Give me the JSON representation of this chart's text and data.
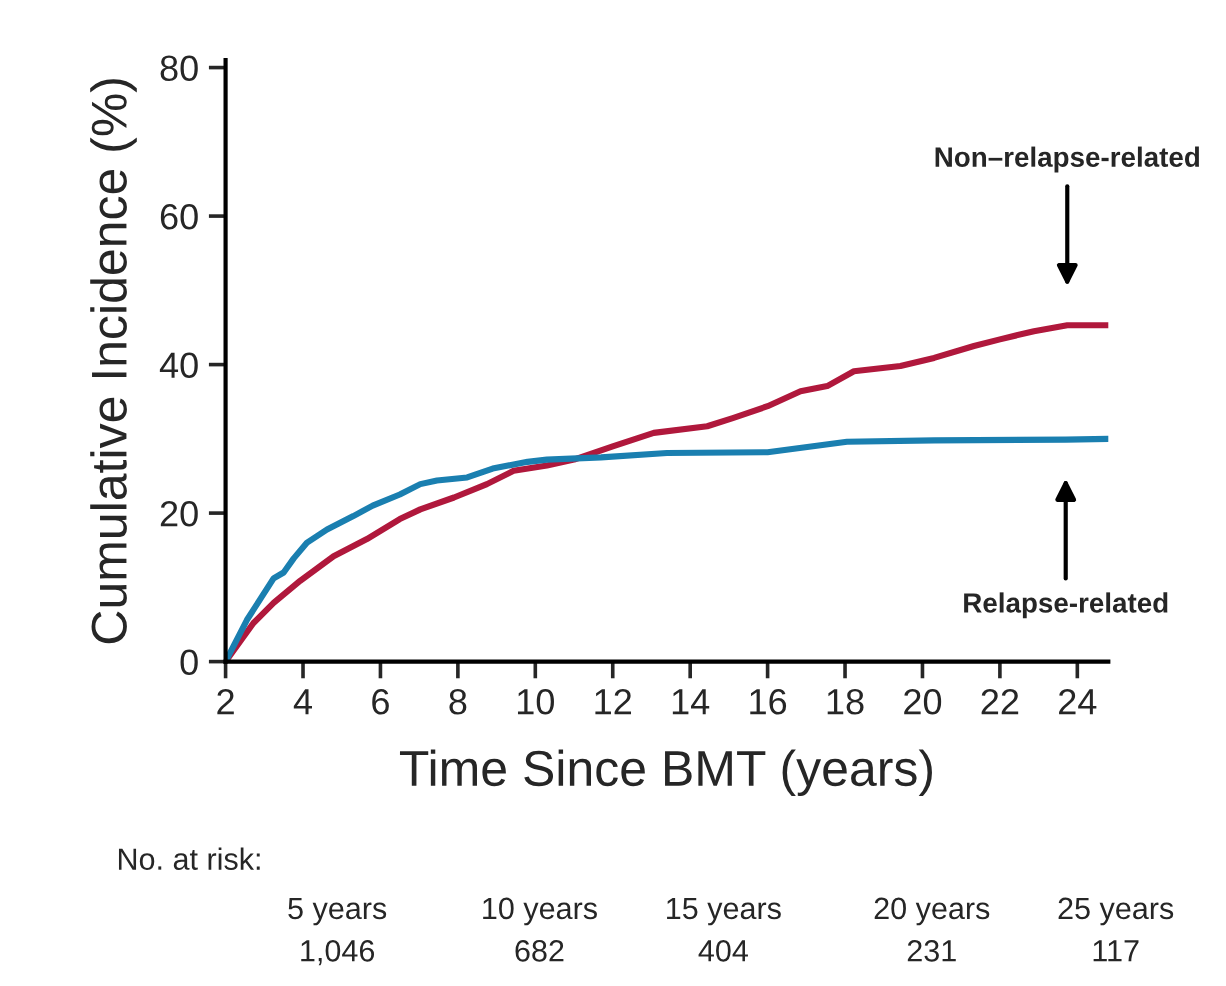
{
  "chart_data": {
    "type": "line",
    "xlabel": "Time Since BMT (years)",
    "ylabel": "Cumulative Incidence (%)",
    "xlim": [
      2,
      24.8
    ],
    "ylim": [
      0,
      81
    ],
    "xticks": [
      2,
      4,
      6,
      8,
      10,
      12,
      14,
      16,
      18,
      20,
      22,
      24
    ],
    "yticks": [
      0,
      20,
      40,
      60,
      80
    ],
    "grid": false,
    "legend": false,
    "series": [
      {
        "color": "#b0183c",
        "x": [
          2,
          2.72,
          3.24,
          3.93,
          4.79,
          5.65,
          6.5,
          7.03,
          7.9,
          8.75,
          9.44,
          10.3,
          11,
          12,
          13.06,
          14.44,
          15.1,
          16,
          16.85,
          17.54,
          18.23,
          19.43,
          20.3,
          21.33,
          22,
          22.88,
          23.74,
          24.8
        ],
        "values": [
          0,
          5.2,
          7.9,
          10.9,
          14.2,
          16.5,
          19.2,
          20.5,
          22.1,
          23.9,
          25.7,
          26.4,
          27.2,
          29,
          30.8,
          31.7,
          32.8,
          34.4,
          36.4,
          37.1,
          39.1,
          39.8,
          40.9,
          42.5,
          43.4,
          44.5,
          45.3,
          45.3
        ]
      },
      {
        "color": "#1a7fb0",
        "x": [
          2,
          2.55,
          3.24,
          3.5,
          3.76,
          4.1,
          4.62,
          5.3,
          5.8,
          6.5,
          7.03,
          7.46,
          8.24,
          8.9,
          9.8,
          10.3,
          11.7,
          13.4,
          16,
          18.05,
          20.3,
          23.7,
          24.8
        ],
        "values": [
          0,
          5.6,
          11.2,
          12,
          13.9,
          16,
          17.8,
          19.6,
          21,
          22.5,
          23.9,
          24.4,
          24.8,
          26,
          26.9,
          27.2,
          27.5,
          28.1,
          28.2,
          29.6,
          29.8,
          29.9,
          30
        ]
      }
    ],
    "annotations": [
      "Non–relapse-related",
      "Relapse-related",
      "No. at risk:",
      "5 years",
      "1,046",
      "10 years",
      "682",
      "15 years",
      "404",
      "20 years",
      "231",
      "25 years",
      "117"
    ]
  }
}
